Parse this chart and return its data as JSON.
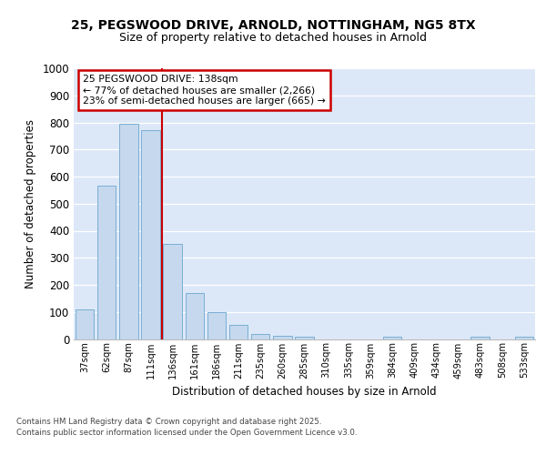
{
  "title_line1": "25, PEGSWOOD DRIVE, ARNOLD, NOTTINGHAM, NG5 8TX",
  "title_line2": "Size of property relative to detached houses in Arnold",
  "xlabel": "Distribution of detached houses by size in Arnold",
  "ylabel": "Number of detached properties",
  "categories": [
    "37sqm",
    "62sqm",
    "87sqm",
    "111sqm",
    "136sqm",
    "161sqm",
    "186sqm",
    "211sqm",
    "235sqm",
    "260sqm",
    "285sqm",
    "310sqm",
    "335sqm",
    "359sqm",
    "384sqm",
    "409sqm",
    "434sqm",
    "459sqm",
    "483sqm",
    "508sqm",
    "533sqm"
  ],
  "values": [
    110,
    565,
    795,
    770,
    350,
    170,
    98,
    52,
    18,
    12,
    10,
    0,
    0,
    0,
    8,
    0,
    0,
    0,
    8,
    0,
    8
  ],
  "bar_color": "#c5d8ed",
  "bar_edge_color": "#7aaed4",
  "bg_color": "#dce8f8",
  "grid_color": "#ffffff",
  "vline_color": "#cc0000",
  "vline_x": 3.5,
  "annotation_text": "25 PEGSWOOD DRIVE: 138sqm\n← 77% of detached houses are smaller (2,266)\n23% of semi-detached houses are larger (665) →",
  "annotation_box_edgecolor": "#cc0000",
  "annotation_bg": "#ffffff",
  "ylim": [
    0,
    1000
  ],
  "yticks": [
    0,
    100,
    200,
    300,
    400,
    500,
    600,
    700,
    800,
    900,
    1000
  ],
  "fig_bg": "#ffffff",
  "footer_line1": "Contains HM Land Registry data © Crown copyright and database right 2025.",
  "footer_line2": "Contains public sector information licensed under the Open Government Licence v3.0."
}
